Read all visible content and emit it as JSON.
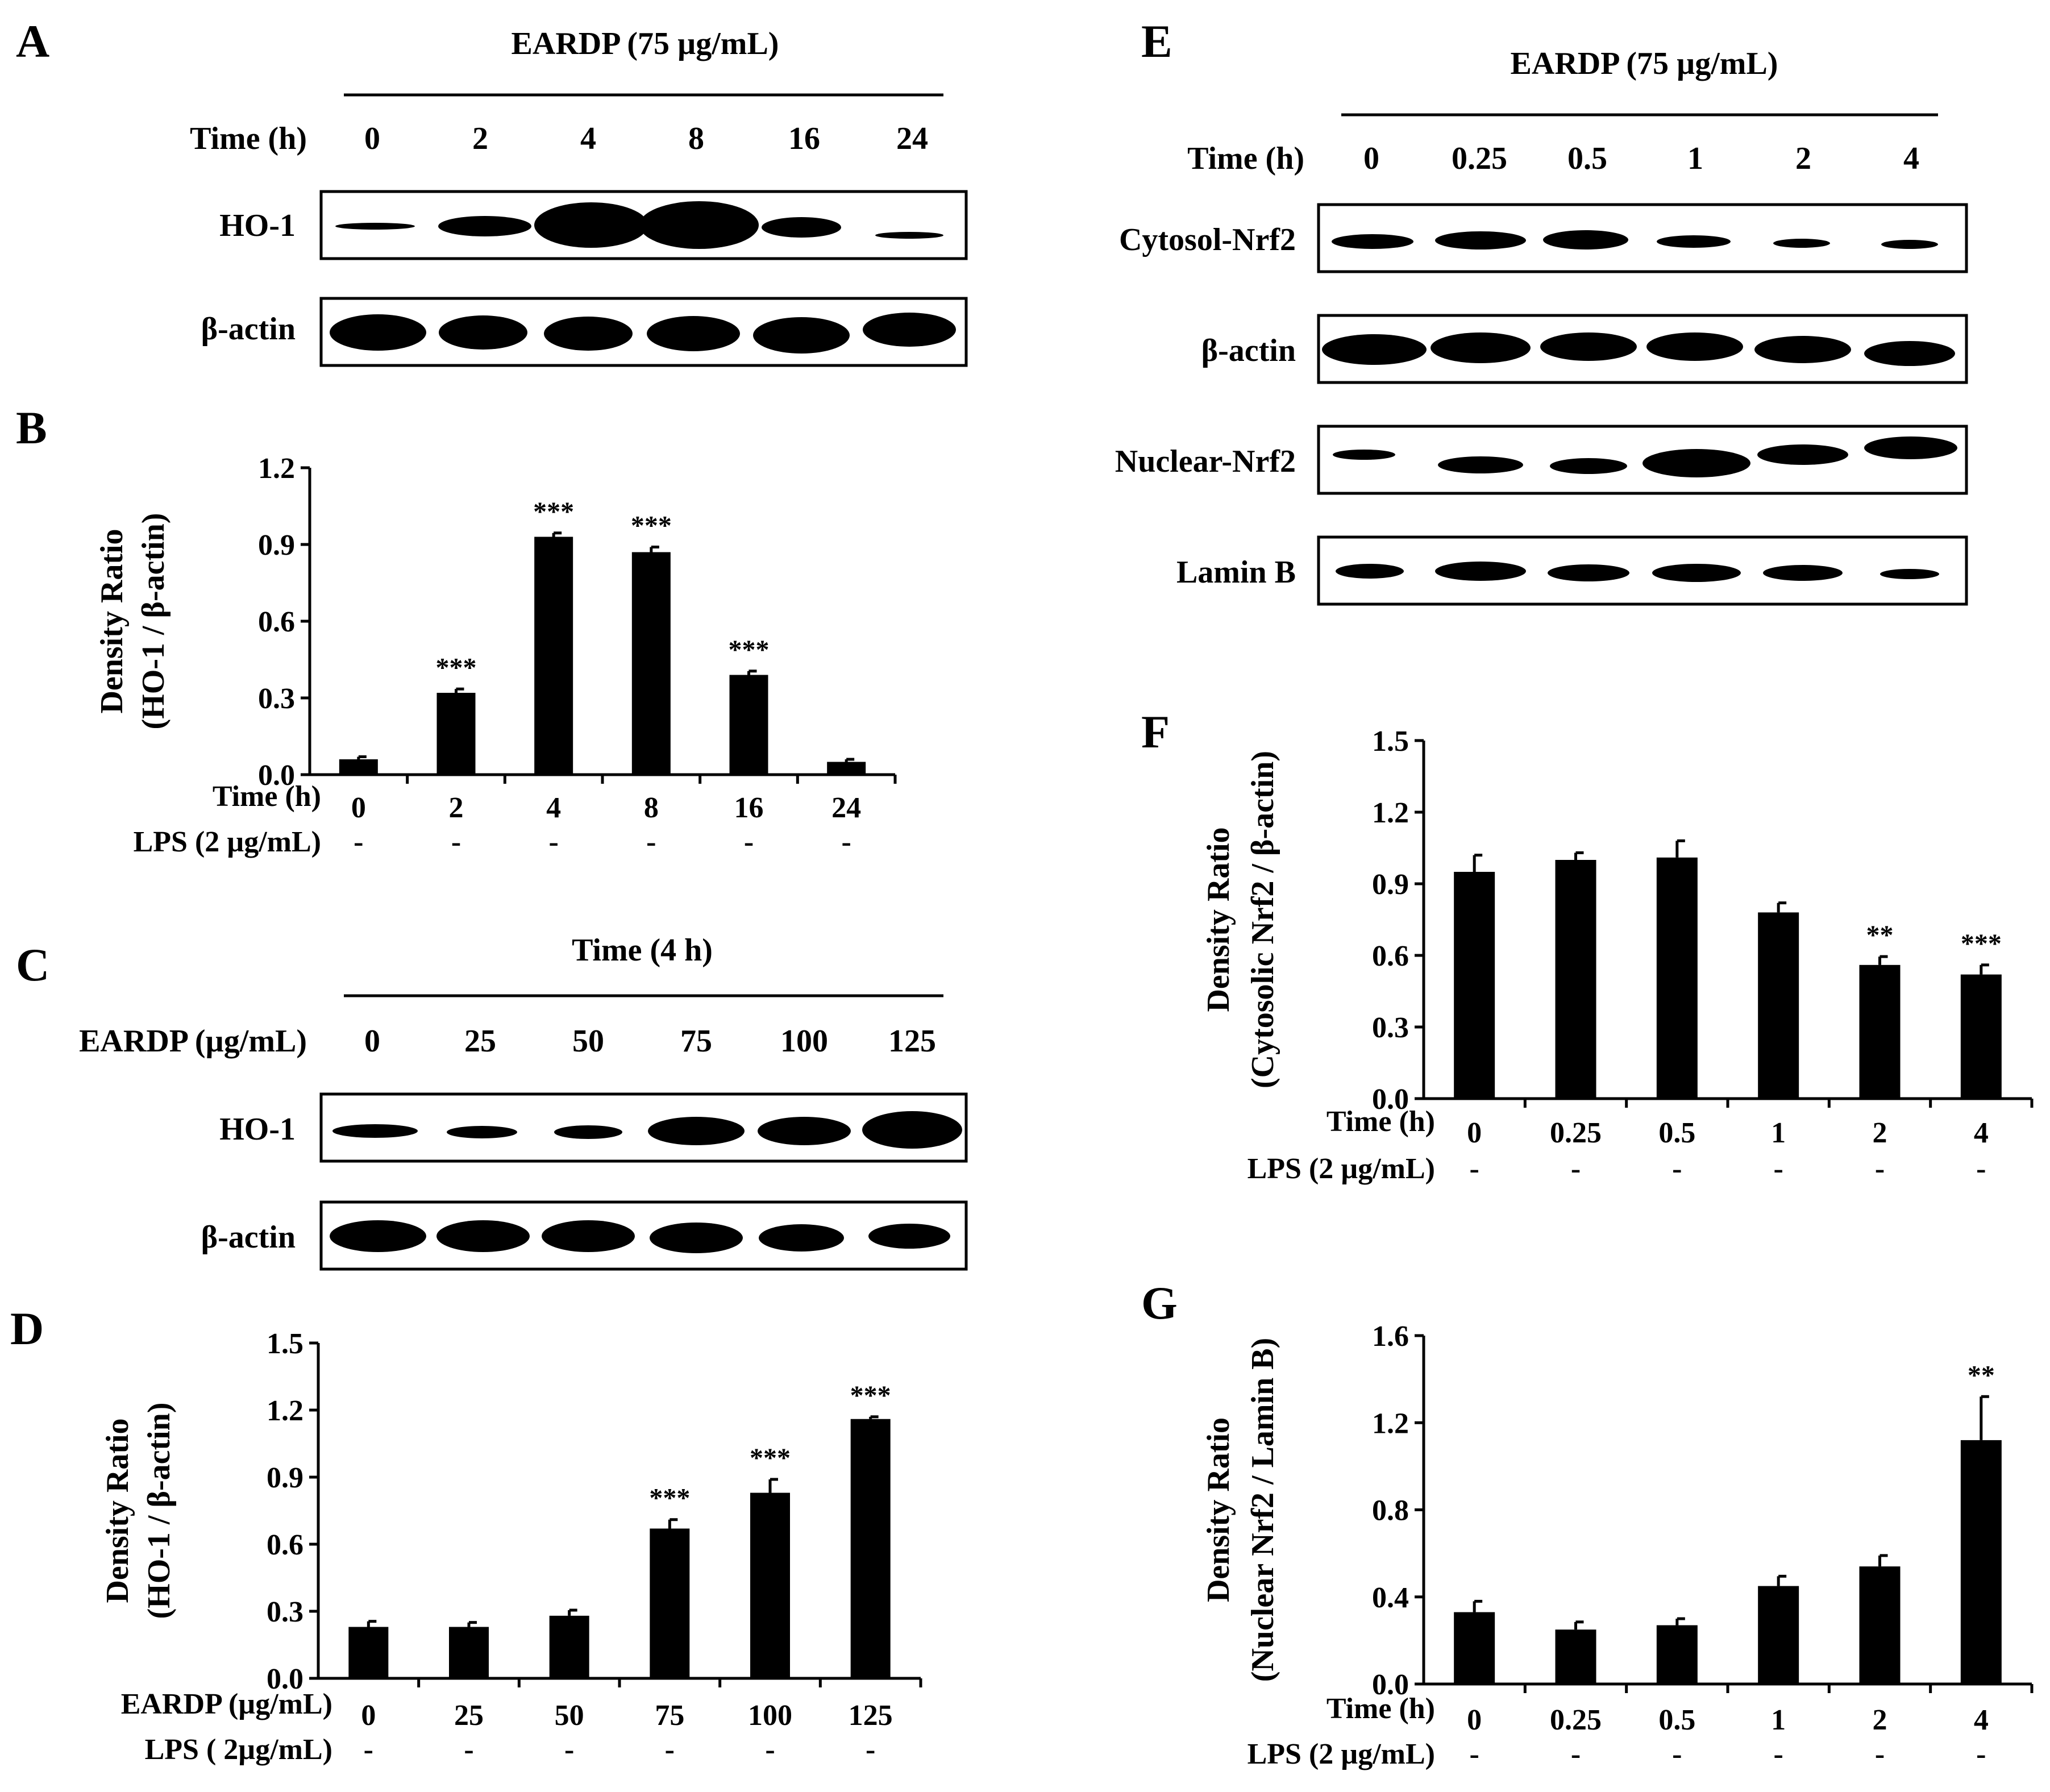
{
  "panel_labels": {
    "A": "A",
    "B": "B",
    "C": "C",
    "D": "D",
    "E": "E",
    "F": "F",
    "G": "G"
  },
  "blot_a": {
    "treatment": "EARDP (75 µg/mL)",
    "row_header_label": "Time (h)",
    "columns": [
      "0",
      "2",
      "4",
      "8",
      "16",
      "24"
    ],
    "band_labels": [
      "HO-1",
      "β-actin"
    ]
  },
  "blot_c": {
    "treatment": "Time (4 h)",
    "row_header_label": "EARDP (µg/mL)",
    "columns": [
      "0",
      "25",
      "50",
      "75",
      "100",
      "125"
    ],
    "band_labels": [
      "HO-1",
      "β-actin"
    ]
  },
  "blot_e": {
    "treatment": "EARDP (75 µg/mL)",
    "row_header_label": "Time (h)",
    "columns": [
      "0",
      "0.25",
      "0.5",
      "1",
      "2",
      "4"
    ],
    "band_labels": [
      "Cytosol-Nrf2",
      "β-actin",
      "Nuclear-Nrf2",
      "Lamin B"
    ]
  },
  "chart_data": [
    {
      "panel": "B",
      "type": "bar",
      "ylabel_line1": "Density  Ratio",
      "ylabel_line2": "(HO-1 / β-actin)",
      "ylim": [
        0,
        1.2
      ],
      "yticks": [
        "0.0",
        "0.3",
        "0.6",
        "0.9",
        "1.2"
      ],
      "row1_label": "Time (h)",
      "row2_label": "LPS (2 µg/mL)",
      "categories": [
        "0",
        "2",
        "4",
        "8",
        "16",
        "24"
      ],
      "values": [
        0.06,
        0.32,
        0.93,
        0.87,
        0.39,
        0.05
      ],
      "errors": [
        0.01,
        0.015,
        0.015,
        0.02,
        0.015,
        0.01
      ],
      "significance": [
        "",
        "***",
        "***",
        "***",
        "***",
        ""
      ],
      "lps": [
        "-",
        "-",
        "-",
        "-",
        "-",
        "-"
      ]
    },
    {
      "panel": "D",
      "type": "bar",
      "ylabel_line1": "Density  Ratio",
      "ylabel_line2": "(HO-1 / β-actin)",
      "ylim": [
        0,
        1.5
      ],
      "yticks": [
        "0.0",
        "0.3",
        "0.6",
        "0.9",
        "1.2",
        "1.5"
      ],
      "row1_label": "EARDP (µg/mL)",
      "row2_label": "LPS ( 2µg/mL)",
      "categories": [
        "0",
        "25",
        "50",
        "75",
        "100",
        "125"
      ],
      "values": [
        0.23,
        0.23,
        0.28,
        0.67,
        0.83,
        1.16
      ],
      "errors": [
        0.025,
        0.02,
        0.025,
        0.04,
        0.06,
        0.01
      ],
      "significance": [
        "",
        "",
        "",
        "***",
        "***",
        "***"
      ],
      "lps": [
        "-",
        "-",
        "-",
        "-",
        "-",
        "-"
      ]
    },
    {
      "panel": "F",
      "type": "bar",
      "ylabel_line1": "Density  Ratio",
      "ylabel_line2": "(Cytosolic Nrf2 / β-actin)",
      "ylim": [
        0,
        1.5
      ],
      "yticks": [
        "0.0",
        "0.3",
        "0.6",
        "0.9",
        "1.2",
        "1.5"
      ],
      "row1_label": "Time (h)",
      "row2_label": "LPS (2 µg/mL)",
      "categories": [
        "0",
        "0.25",
        "0.5",
        "1",
        "2",
        "4"
      ],
      "values": [
        0.95,
        1.0,
        1.01,
        0.78,
        0.56,
        0.52
      ],
      "errors": [
        0.07,
        0.03,
        0.07,
        0.04,
        0.035,
        0.04
      ],
      "significance": [
        "",
        "",
        "",
        "",
        "**",
        "***"
      ],
      "lps": [
        "-",
        "-",
        "-",
        "-",
        "-",
        "-"
      ]
    },
    {
      "panel": "G",
      "type": "bar",
      "ylabel_line1": "Density  Ratio",
      "ylabel_line2": "(Nuclear Nrf2 / Lamin B)",
      "ylim": [
        0,
        1.6
      ],
      "yticks": [
        "0.0",
        "0.4",
        "0.8",
        "1.2",
        "1.6"
      ],
      "row1_label": "Time (h)",
      "row2_label": "LPS (2 µg/mL)",
      "categories": [
        "0",
        "0.25",
        "0.5",
        "1",
        "2",
        "4"
      ],
      "values": [
        0.33,
        0.25,
        0.27,
        0.45,
        0.54,
        1.12
      ],
      "errors": [
        0.05,
        0.035,
        0.03,
        0.045,
        0.05,
        0.2
      ],
      "significance": [
        "",
        "",
        "",
        "",
        "",
        "**"
      ],
      "lps": [
        "-",
        "-",
        "-",
        "-",
        "-",
        "-"
      ]
    }
  ]
}
